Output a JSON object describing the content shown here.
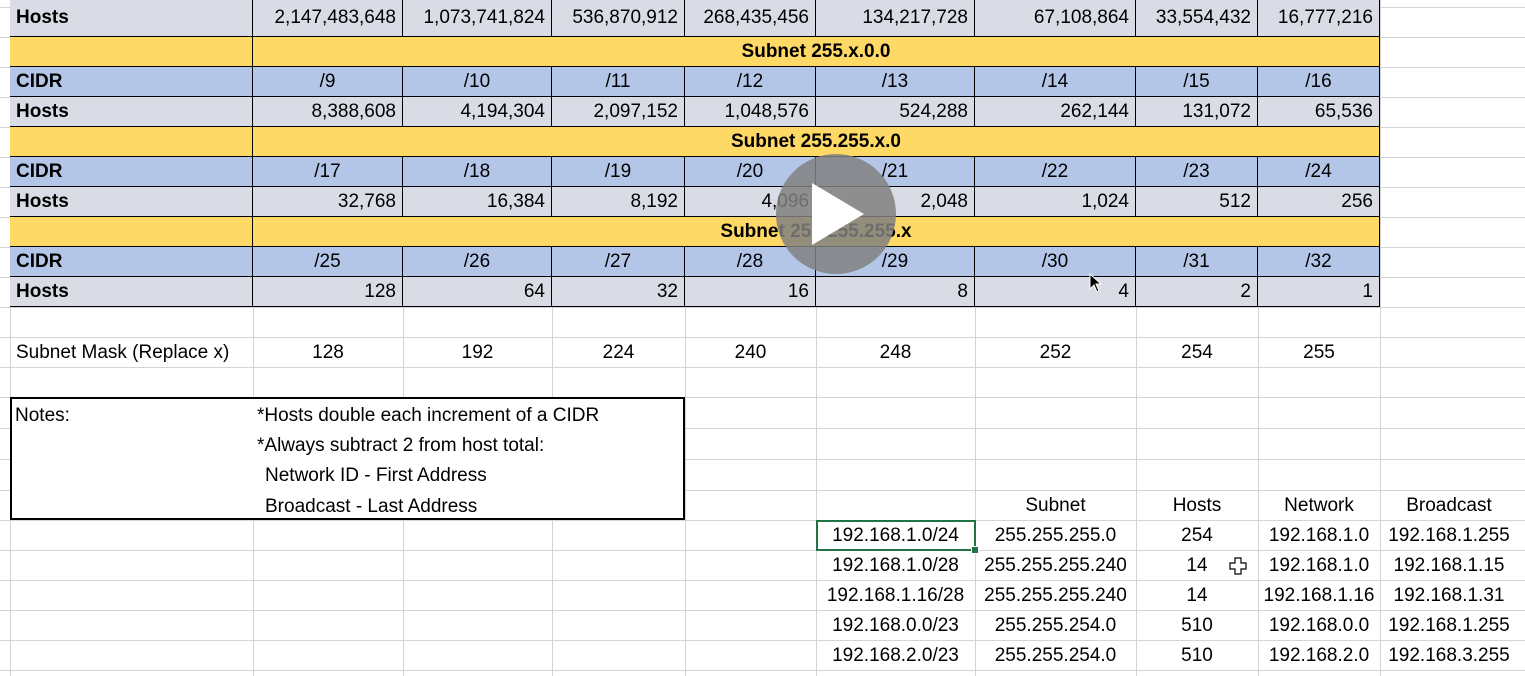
{
  "top_row": {
    "label": "Hosts",
    "values": [
      "2,147,483,648",
      "1,073,741,824",
      "536,870,912",
      "268,435,456",
      "134,217,728",
      "67,108,864",
      "33,554,432",
      "16,777,216"
    ]
  },
  "blocks": [
    {
      "subnet_label": "Subnet 255.x.0.0",
      "cidr_label": "CIDR",
      "cidrs": [
        "/9",
        "/10",
        "/11",
        "/12",
        "/13",
        "/14",
        "/15",
        "/16"
      ],
      "hosts_label": "Hosts",
      "hosts": [
        "8,388,608",
        "4,194,304",
        "2,097,152",
        "1,048,576",
        "524,288",
        "262,144",
        "131,072",
        "65,536"
      ]
    },
    {
      "subnet_label": "Subnet 255.255.x.0",
      "cidr_label": "CIDR",
      "cidrs": [
        "/17",
        "/18",
        "/19",
        "/20",
        "/21",
        "/22",
        "/23",
        "/24"
      ],
      "hosts_label": "Hosts",
      "hosts": [
        "32,768",
        "16,384",
        "8,192",
        "4,096",
        "2,048",
        "1,024",
        "512",
        "256"
      ]
    },
    {
      "subnet_label": "Subnet 255.255.255.x",
      "cidr_label": "CIDR",
      "cidrs": [
        "/25",
        "/26",
        "/27",
        "/28",
        "/29",
        "/30",
        "/31",
        "/32"
      ],
      "hosts_label": "Hosts",
      "hosts": [
        "128",
        "64",
        "32",
        "16",
        "8",
        "4",
        "2",
        "1"
      ]
    }
  ],
  "mask_row": {
    "label": "Subnet Mask (Replace x)",
    "values": [
      "128",
      "192",
      "224",
      "240",
      "248",
      "252",
      "254",
      "255"
    ]
  },
  "notes": {
    "label": "Notes:",
    "lines": [
      "*Hosts double each increment of a CIDR",
      "*Always subtract 2 from host total:",
      " Network ID - First Address",
      " Broadcast - Last Address"
    ]
  },
  "examples": {
    "headers": [
      "Subnet",
      "Hosts",
      "Network",
      "Broadcast"
    ],
    "rows": [
      [
        "192.168.1.0/24",
        "255.255.255.0",
        "254",
        "192.168.1.0",
        "192.168.1.255"
      ],
      [
        "192.168.1.0/28",
        "255.255.255.240",
        "14",
        "192.168.1.0",
        "192.168.1.15"
      ],
      [
        "192.168.1.16/28",
        "255.255.255.240",
        "14",
        "192.168.1.16",
        "192.168.1.31"
      ],
      [
        "192.168.0.0/23",
        "255.255.254.0",
        "510",
        "192.168.0.0",
        "192.168.1.255"
      ],
      [
        "192.168.2.0/23",
        "255.255.254.0",
        "510",
        "192.168.2.0",
        "192.168.3.255"
      ]
    ]
  },
  "colors": {
    "header_blue": "#b4c6e7",
    "hosts_gray": "#d9dce4",
    "subnet_yellow": "#ffd966",
    "selection_green": "#217346"
  },
  "icons": {
    "play": "play-icon",
    "cursor": "plus-cursor-icon",
    "arrow": "mouse-arrow-icon"
  }
}
